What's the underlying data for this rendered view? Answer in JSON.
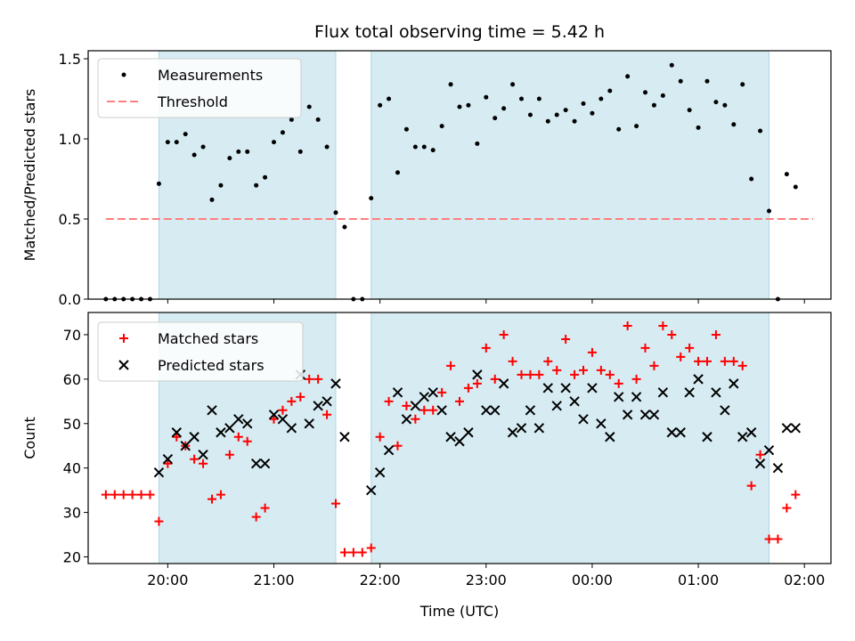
{
  "chart_data": [
    {
      "type": "scatter",
      "title": "Flux total observing time = 5.42 h",
      "xlabel": "",
      "ylabel": "Matched/Predicted stars",
      "xlim": [
        "19:15",
        "02:15"
      ],
      "ylim": [
        0,
        1.55
      ],
      "yticks": [
        "0.0",
        "0.5",
        "1.0",
        "1.5"
      ],
      "xticks": [
        "20:00",
        "21:00",
        "22:00",
        "23:00",
        "00:00",
        "01:00",
        "02:00"
      ],
      "shaded_intervals": [
        [
          "19:55",
          "21:35"
        ],
        [
          "21:55",
          "01:40"
        ]
      ],
      "legend": {
        "position": "top-left",
        "entries": [
          "Measurements",
          "Threshold"
        ]
      },
      "threshold": {
        "name": "Threshold",
        "value": 0.5,
        "x_range": [
          "19:25",
          "02:05"
        ],
        "color": "#ff7f7f"
      },
      "series": [
        {
          "name": "Measurements",
          "color": "#000000",
          "x": [
            "19:25",
            "19:30",
            "19:35",
            "19:40",
            "19:45",
            "19:50",
            "19:55",
            "20:00",
            "20:05",
            "20:10",
            "20:15",
            "20:20",
            "20:25",
            "20:30",
            "20:35",
            "20:40",
            "20:45",
            "20:50",
            "20:55",
            "21:00",
            "21:05",
            "21:10",
            "21:15",
            "21:20",
            "21:25",
            "21:30",
            "21:35",
            "21:40",
            "21:45",
            "21:50",
            "21:55",
            "22:00",
            "22:05",
            "22:10",
            "22:15",
            "22:20",
            "22:25",
            "22:30",
            "22:35",
            "22:40",
            "22:45",
            "22:50",
            "22:55",
            "23:00",
            "23:05",
            "23:10",
            "23:15",
            "23:20",
            "23:25",
            "23:30",
            "23:35",
            "23:40",
            "23:45",
            "23:50",
            "23:55",
            "00:00",
            "00:05",
            "00:10",
            "00:15",
            "00:20",
            "00:25",
            "00:30",
            "00:35",
            "00:40",
            "00:45",
            "00:50",
            "00:55",
            "01:00",
            "01:05",
            "01:10",
            "01:15",
            "01:20",
            "01:25",
            "01:30",
            "01:35",
            "01:40",
            "01:45",
            "01:50",
            "01:55"
          ],
          "y": [
            0,
            0,
            0,
            0,
            0,
            0,
            0.72,
            0.98,
            0.98,
            1.03,
            0.9,
            0.95,
            0.62,
            0.71,
            0.88,
            0.92,
            0.92,
            0.71,
            0.76,
            0.98,
            1.04,
            1.12,
            0.92,
            1.2,
            1.12,
            0.95,
            0.54,
            0.45,
            0,
            0,
            0.63,
            1.21,
            1.25,
            0.79,
            1.06,
            0.95,
            0.95,
            0.93,
            1.08,
            1.34,
            1.2,
            1.21,
            0.97,
            1.26,
            1.13,
            1.19,
            1.34,
            1.25,
            1.15,
            1.25,
            1.11,
            1.15,
            1.18,
            1.11,
            1.22,
            1.16,
            1.25,
            1.3,
            1.06,
            1.39,
            1.08,
            1.29,
            1.21,
            1.27,
            1.46,
            1.36,
            1.18,
            1.07,
            1.36,
            1.23,
            1.21,
            1.09,
            1.34,
            0.75,
            1.05,
            0.55,
            0,
            0.78,
            0.7
          ]
        }
      ]
    },
    {
      "type": "scatter",
      "title": "",
      "xlabel": "Time (UTC)",
      "ylabel": "Count",
      "xlim": [
        "19:15",
        "02:15"
      ],
      "ylim": [
        18.5,
        75
      ],
      "yticks": [
        "20",
        "30",
        "40",
        "50",
        "60",
        "70"
      ],
      "xticks": [
        "20:00",
        "21:00",
        "22:00",
        "23:00",
        "00:00",
        "01:00",
        "02:00"
      ],
      "shaded_intervals": [
        [
          "19:55",
          "21:35"
        ],
        [
          "21:55",
          "01:40"
        ]
      ],
      "legend": {
        "position": "top-left",
        "entries": [
          "Matched stars",
          "Predicted stars"
        ]
      },
      "series": [
        {
          "name": "Matched stars",
          "marker": "plus",
          "color": "#ff0000",
          "x": [
            "19:25",
            "19:30",
            "19:35",
            "19:40",
            "19:45",
            "19:50",
            "19:55",
            "20:00",
            "20:05",
            "20:10",
            "20:15",
            "20:20",
            "20:25",
            "20:30",
            "20:35",
            "20:40",
            "20:45",
            "20:50",
            "20:55",
            "21:00",
            "21:05",
            "21:10",
            "21:15",
            "21:20",
            "21:25",
            "21:30",
            "21:35",
            "21:40",
            "21:45",
            "21:50",
            "21:55",
            "22:00",
            "22:05",
            "22:10",
            "22:15",
            "22:20",
            "22:25",
            "22:30",
            "22:35",
            "22:40",
            "22:45",
            "22:50",
            "22:55",
            "23:00",
            "23:05",
            "23:10",
            "23:15",
            "23:20",
            "23:25",
            "23:30",
            "23:35",
            "23:40",
            "23:45",
            "23:50",
            "23:55",
            "00:00",
            "00:05",
            "00:10",
            "00:15",
            "00:20",
            "00:25",
            "00:30",
            "00:35",
            "00:40",
            "00:45",
            "00:50",
            "00:55",
            "01:00",
            "01:05",
            "01:10",
            "01:15",
            "01:20",
            "01:25",
            "01:30",
            "01:35",
            "01:40",
            "01:45",
            "01:50",
            "01:55"
          ],
          "y": [
            34,
            34,
            34,
            34,
            34,
            34,
            28,
            41,
            47,
            45,
            42,
            41,
            33,
            34,
            43,
            47,
            46,
            29,
            31,
            51,
            53,
            55,
            56,
            60,
            60,
            52,
            32,
            21,
            21,
            21,
            22,
            47,
            55,
            45,
            54,
            51,
            53,
            53,
            57,
            63,
            55,
            58,
            59,
            67,
            60,
            70,
            64,
            61,
            61,
            61,
            64,
            62,
            69,
            61,
            62,
            66,
            62,
            61,
            59,
            72,
            60,
            67,
            63,
            72,
            70,
            65,
            67,
            64,
            64,
            70,
            64,
            64,
            63,
            36,
            43,
            24,
            24,
            31,
            34
          ]
        },
        {
          "name": "Predicted stars",
          "marker": "x",
          "color": "#000000",
          "x": [
            "19:55",
            "20:00",
            "20:05",
            "20:10",
            "20:15",
            "20:20",
            "20:25",
            "20:30",
            "20:35",
            "20:40",
            "20:45",
            "20:50",
            "20:55",
            "21:00",
            "21:05",
            "21:10",
            "21:15",
            "21:20",
            "21:25",
            "21:30",
            "21:35",
            "21:40",
            "21:55",
            "22:00",
            "22:05",
            "22:10",
            "22:15",
            "22:20",
            "22:25",
            "22:30",
            "22:35",
            "22:40",
            "22:45",
            "22:50",
            "22:55",
            "23:00",
            "23:05",
            "23:10",
            "23:15",
            "23:20",
            "23:25",
            "23:30",
            "23:35",
            "23:40",
            "23:45",
            "23:50",
            "23:55",
            "00:00",
            "00:05",
            "00:10",
            "00:15",
            "00:20",
            "00:25",
            "00:30",
            "00:35",
            "00:40",
            "00:45",
            "00:50",
            "00:55",
            "01:00",
            "01:05",
            "01:10",
            "01:15",
            "01:20",
            "01:25",
            "01:30",
            "01:35",
            "01:40",
            "01:45",
            "01:50",
            "01:55"
          ],
          "y": [
            39,
            42,
            48,
            45,
            47,
            43,
            53,
            48,
            49,
            51,
            50,
            41,
            41,
            52,
            51,
            49,
            61,
            50,
            54,
            55,
            59,
            47,
            35,
            39,
            44,
            57,
            51,
            54,
            56,
            57,
            53,
            47,
            46,
            48,
            61,
            53,
            53,
            59,
            48,
            49,
            53,
            49,
            58,
            54,
            58,
            55,
            51,
            58,
            50,
            47,
            56,
            52,
            56,
            52,
            52,
            57,
            48,
            48,
            57,
            60,
            47,
            57,
            53,
            59,
            47,
            48,
            41,
            44,
            40,
            49,
            49
          ]
        }
      ]
    }
  ]
}
